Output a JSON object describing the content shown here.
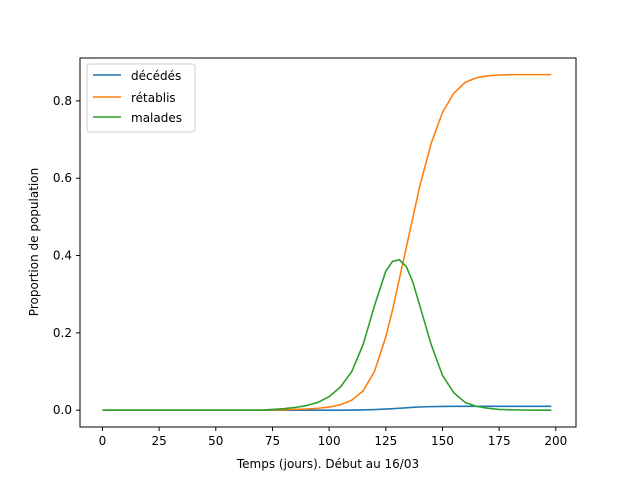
{
  "chart_data": {
    "type": "line",
    "title": "",
    "xlabel": "Temps (jours). Début au 16/03",
    "ylabel": "Proportion de population",
    "xlim": [
      -9.9,
      208.9
    ],
    "ylim": [
      -0.0435,
      0.911
    ],
    "xticks": [
      0,
      25,
      50,
      75,
      100,
      125,
      150,
      175,
      200
    ],
    "yticks": [
      0.0,
      0.2,
      0.4,
      0.6,
      0.8
    ],
    "xtick_labels": [
      "0",
      "25",
      "50",
      "75",
      "100",
      "125",
      "150",
      "175",
      "200"
    ],
    "ytick_labels": [
      "0.0",
      "0.2",
      "0.4",
      "0.6",
      "0.8"
    ],
    "grid": false,
    "legend_position": "top-left",
    "x": [
      0,
      10,
      20,
      30,
      40,
      50,
      60,
      70,
      80,
      85,
      90,
      95,
      100,
      105,
      110,
      115,
      120,
      125,
      128,
      131,
      134,
      137,
      140,
      145,
      150,
      155,
      160,
      165,
      170,
      175,
      180,
      185,
      190,
      195,
      198
    ],
    "series": [
      {
        "name": "décédés",
        "color": "#1f77b4",
        "values": [
          0.0,
          0.0,
          0.0,
          0.0,
          0.0,
          0.0,
          0.0,
          0.0,
          0.0,
          0.0,
          0.0,
          0.0,
          0.0,
          0.0,
          0.0003,
          0.0007,
          0.0015,
          0.003,
          0.004,
          0.005,
          0.0062,
          0.0073,
          0.0082,
          0.0092,
          0.0097,
          0.0099,
          0.01,
          0.01,
          0.01,
          0.01,
          0.01,
          0.01,
          0.01,
          0.01,
          0.01
        ]
      },
      {
        "name": "rétablis",
        "color": "#ff7f0e",
        "values": [
          0.0,
          0.0,
          0.0,
          0.0,
          0.0,
          0.0,
          0.0,
          0.0,
          0.001,
          0.002,
          0.003,
          0.005,
          0.008,
          0.014,
          0.026,
          0.05,
          0.1,
          0.19,
          0.26,
          0.34,
          0.42,
          0.5,
          0.58,
          0.69,
          0.77,
          0.82,
          0.848,
          0.86,
          0.865,
          0.867,
          0.868,
          0.868,
          0.868,
          0.868,
          0.868
        ]
      },
      {
        "name": "malades",
        "color": "#2ca02c",
        "values": [
          0.0,
          0.0,
          0.0,
          0.0,
          0.0,
          0.0,
          0.0,
          0.0,
          0.004,
          0.007,
          0.012,
          0.02,
          0.035,
          0.06,
          0.1,
          0.17,
          0.27,
          0.36,
          0.385,
          0.389,
          0.372,
          0.33,
          0.27,
          0.17,
          0.09,
          0.045,
          0.02,
          0.01,
          0.005,
          0.002,
          0.001,
          0.0005,
          0.0,
          0.0,
          0.0
        ]
      }
    ]
  }
}
